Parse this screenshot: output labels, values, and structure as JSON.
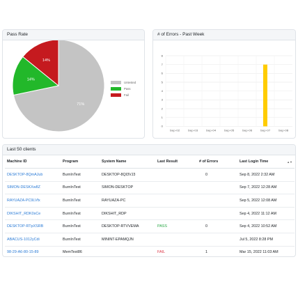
{
  "pass_rate": {
    "title": "Pass Rate",
    "legend": [
      {
        "label": "Untested",
        "color": "#c4c4c4"
      },
      {
        "label": "Pass",
        "color": "#22b82a"
      },
      {
        "label": "Fail",
        "color": "#c51a1f"
      }
    ],
    "chart_data": {
      "type": "pie",
      "categories": [
        "Untested",
        "Pass",
        "Fail"
      ],
      "values": [
        71,
        14,
        14
      ],
      "labels": [
        "71%",
        "14%",
        "14%"
      ],
      "colors": [
        "#c4c4c4",
        "#22b82a",
        "#c51a1f"
      ]
    }
  },
  "errors": {
    "title": "# of Errors - Past Week",
    "chart_data": {
      "type": "bar",
      "categories": [
        "Sep-02",
        "Sep-03",
        "Sep-04",
        "Sep-05",
        "Sep-06",
        "Sep-07",
        "Sep-08"
      ],
      "values": [
        0,
        0,
        0,
        0,
        0,
        7,
        0
      ],
      "yticks": [
        0,
        1,
        2,
        3,
        4,
        5,
        6,
        7,
        8
      ],
      "ylim": [
        0,
        8
      ],
      "color": "#ffcc00",
      "grid": true
    }
  },
  "clients": {
    "title": "Last 50 clients",
    "columns": [
      "Machine ID",
      "Program",
      "System Name",
      "Last Result",
      "# of Errors",
      "Last Login Time"
    ],
    "rows": [
      {
        "machine_id": "DESKTOP-8QmAJub",
        "program": "BurnInTest",
        "system_name": "DESKTOP-8QI3VJ3",
        "last_result": "",
        "errors": "0",
        "last_login": "Sep 8, 2022 2:32 AM"
      },
      {
        "machine_id": "SIMON-DESKXw8Z",
        "program": "BurnInTest",
        "system_name": "SIMON-DESKTOP",
        "last_result": "",
        "errors": "",
        "last_login": "Sep 7, 2022 12:28 AM"
      },
      {
        "machine_id": "RAYUAZA-PC9LVfx",
        "program": "BurnInTest",
        "system_name": "RAYUAZA-PC",
        "last_result": "",
        "errors": "",
        "last_login": "Sep 5, 2022 12:08 AM"
      },
      {
        "machine_id": "DIKSHIT_RDK0sCe",
        "program": "BurnInTest",
        "system_name": "DIKSHIT_RDP",
        "last_result": "",
        "errors": "",
        "last_login": "Sep 4, 2022 11:12 AM"
      },
      {
        "machine_id": "DESKTOP-RTpXSRB",
        "program": "BurnInTest",
        "system_name": "DESKTOP-RTVVEMA",
        "last_result": "PASS",
        "errors": "0",
        "last_login": "Sep 4, 2022 10:52 AM"
      },
      {
        "machine_id": "ABACUS-1012yCdi",
        "program": "BurnInTest",
        "system_name": "MININT-EPAMQJN",
        "last_result": "",
        "errors": "",
        "last_login": "Jul 5, 2022 8:28 PM"
      },
      {
        "machine_id": "98-29-A6-80-15-89",
        "program": "MemTest86",
        "system_name": "",
        "last_result": "FAIL",
        "errors": "1",
        "last_login": "Mar 15, 2022 11:03 AM"
      }
    ],
    "sort_icon": "sort-icon"
  }
}
